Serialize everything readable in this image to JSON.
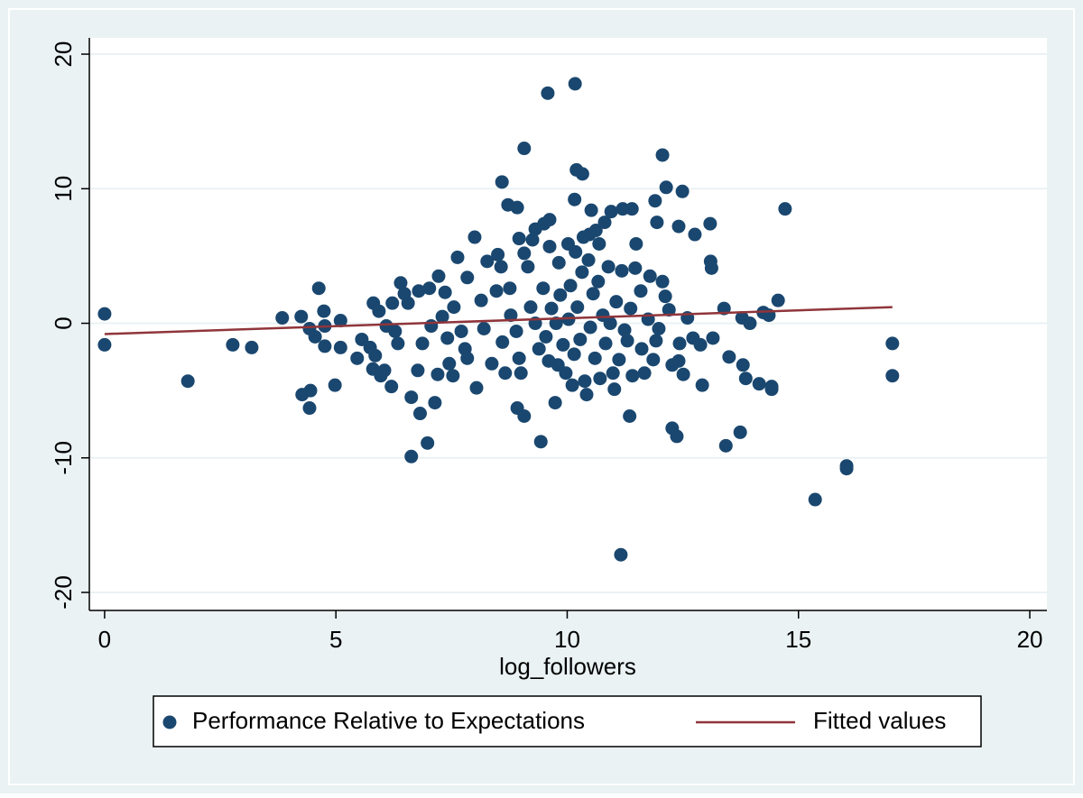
{
  "chart_data": {
    "type": "scatter",
    "x_label": "log_followers",
    "xlim": [
      -0.33,
      20.37
    ],
    "ylim": [
      -21.34,
      21.21
    ],
    "xticks": [
      0,
      5,
      10,
      15,
      20
    ],
    "yticks": [
      -20,
      -10,
      0,
      10,
      20
    ],
    "grid": true,
    "legend": "bottom",
    "series": [
      {
        "name": "Performance Relative to Expectations",
        "color": "#1a476f",
        "type": "scatter",
        "x": [
          0,
          0,
          1.8,
          2.77,
          3.18,
          3.84,
          4.25,
          4.27,
          4.45,
          4.43,
          4.43,
          4.55,
          4.63,
          4.74,
          4.76,
          4.76,
          4.98,
          5.1,
          5.1,
          5.46,
          5.56,
          5.74,
          5.81,
          5.8,
          5.85,
          5.93,
          5.97,
          6.05,
          6.09,
          6.22,
          6.2,
          6.28,
          6.34,
          6.4,
          6.48,
          6.56,
          6.63,
          6.63,
          6.77,
          6.79,
          6.82,
          6.87,
          6.98,
          7.02,
          7.06,
          7.14,
          7.2,
          7.22,
          7.3,
          7.36,
          7.41,
          7.45,
          7.55,
          7.53,
          7.71,
          7.79,
          7.84,
          7.84,
          8.04,
          8.14,
          8.2,
          8.27,
          8.37,
          8.47,
          8.57,
          8.6,
          8.66,
          8.76,
          8.78,
          8.9,
          8.92,
          8.96,
          9,
          9.07,
          9.15,
          9.21,
          9.31,
          9.39,
          9.43,
          9.48,
          9.54,
          9.6,
          9.66,
          9.74,
          9.76,
          9.8,
          9.85,
          9.91,
          9.97,
          10.03,
          10.07,
          10.11,
          10.15,
          10.22,
          10.28,
          10.32,
          10.38,
          10.42,
          10.46,
          10.5,
          10.56,
          10.6,
          10.67,
          10.71,
          10.77,
          10.83,
          10.89,
          10.93,
          10.99,
          11.02,
          11.06,
          11.12,
          11.18,
          11.24,
          11.37,
          11.41,
          11.47,
          11.59,
          11.61,
          11.67,
          11.75,
          11.79,
          11.86,
          11.92,
          11.98,
          12.06,
          10.17,
          9.58,
          9.07,
          10.2,
          10.33,
          10.16,
          8.59,
          8.72,
          8.92,
          9.62,
          9.5,
          9.31,
          9.25,
          8.96,
          9.62,
          8,
          7.63,
          8.5,
          9.07,
          9.82,
          10.02,
          10.48,
          10.62,
          11.49,
          11.4,
          11.2,
          10.95,
          10.52,
          10.81,
          10.35,
          10.69,
          10.18,
          12.06,
          12.14,
          12.49,
          11.9,
          12.41,
          11.94,
          12.76,
          13.09,
          13.1,
          13.12,
          11.3,
          11.35,
          11.16,
          12.27,
          12.37,
          13.43,
          13.74,
          13.5,
          13.8,
          13.86,
          14.15,
          14.42,
          14.42,
          13.39,
          13.78,
          13.95,
          14.24,
          14.36,
          14.56,
          14.71,
          15.36,
          16.04,
          16.04,
          17.03,
          17.03,
          12.2,
          12.12,
          12.6,
          12.72,
          12.88,
          13.15,
          12.92,
          12.51,
          12.41,
          12.27,
          12.43
        ],
        "values": [
          0.7,
          -1.6,
          -4.3,
          -1.6,
          -1.8,
          0.4,
          0.5,
          -5.3,
          -5,
          -6.3,
          -0.4,
          -1,
          2.6,
          0.9,
          -0.2,
          -1.7,
          -4.6,
          0.2,
          -1.8,
          -2.6,
          -1.2,
          -1.8,
          1.5,
          -3.4,
          -2.4,
          0.9,
          -3.9,
          -3.5,
          -0.2,
          1.5,
          -4.7,
          -0.6,
          -1.5,
          3,
          2.2,
          1.5,
          -5.5,
          -9.9,
          -3.5,
          2.4,
          -6.7,
          -1.5,
          -8.9,
          2.6,
          -0.2,
          -5.9,
          -3.8,
          3.5,
          0.5,
          2.3,
          -1.1,
          -3,
          1.2,
          -3.9,
          -0.6,
          -1.9,
          3.4,
          -2.6,
          -4.8,
          1.7,
          -0.4,
          4.6,
          -3,
          2.4,
          4.2,
          -1.4,
          -3.7,
          2.6,
          0.6,
          -0.6,
          -6.3,
          -2.6,
          -3.7,
          -6.9,
          4.2,
          1.2,
          0,
          -1.9,
          -8.8,
          2.6,
          -1,
          -2.8,
          1.1,
          -5.9,
          0,
          -3.1,
          2.1,
          -1.6,
          -3.7,
          0.3,
          2.8,
          -4.6,
          -2.3,
          1.2,
          -1.2,
          3.8,
          -4.3,
          -5.3,
          4.7,
          -0.3,
          2.2,
          -2.6,
          3.1,
          -4.1,
          0.6,
          -1.5,
          4.2,
          0,
          -3.7,
          -4.9,
          1.6,
          -2.7,
          3.9,
          -0.5,
          1.1,
          -3.9,
          4.1,
          2.4,
          -1.9,
          -3.7,
          0.3,
          3.5,
          -2.7,
          -1.3,
          -0.4,
          3.1,
          17.8,
          17.1,
          13,
          11.4,
          11.1,
          9.2,
          10.5,
          8.8,
          8.6,
          7.7,
          7.4,
          7,
          6.2,
          6.3,
          5.7,
          6.4,
          4.9,
          5.1,
          5.2,
          4.5,
          5.9,
          6.6,
          6.9,
          5.9,
          8.5,
          8.5,
          8.3,
          8.4,
          7.5,
          6.4,
          5.9,
          5.3,
          12.5,
          10.1,
          9.8,
          9.1,
          7.2,
          7.5,
          6.6,
          7.4,
          4.6,
          4.1,
          -1.3,
          -6.9,
          -17.2,
          -7.8,
          -8.4,
          -9.1,
          -8.1,
          -2.5,
          -3.1,
          -4.1,
          -4.5,
          -4.7,
          -4.9,
          1.1,
          0.4,
          0,
          0.8,
          0.6,
          1.7,
          8.5,
          -13.1,
          -10.6,
          -10.8,
          -1.5,
          -3.9,
          1,
          2,
          0.4,
          -1.1,
          -1.6,
          -1.1,
          -4.6,
          -3.8,
          -2.8,
          -3.1,
          -1.5
        ]
      },
      {
        "name": "Fitted values",
        "color": "#90353b",
        "type": "line",
        "x": [
          0,
          17.03
        ],
        "values": [
          -0.8,
          1.2
        ]
      }
    ]
  }
}
